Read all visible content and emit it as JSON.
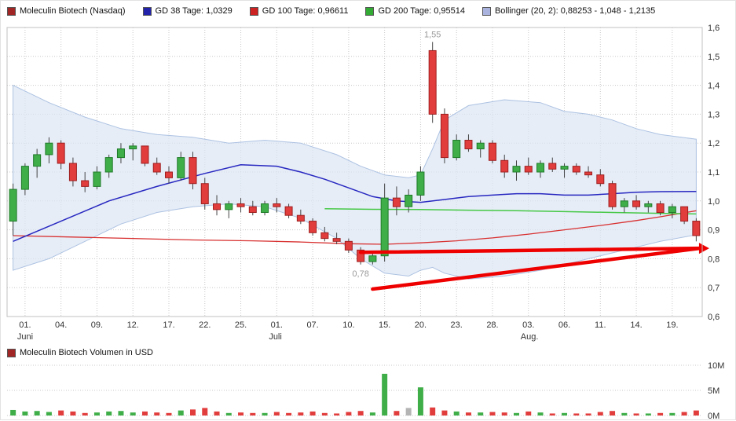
{
  "legend": {
    "items": [
      {
        "label": "Moleculin Biotech (Nasdaq)",
        "color": "#a02525"
      },
      {
        "label": "GD 38 Tage: 1,0329",
        "color": "#2222aa"
      },
      {
        "label": "GD 100 Tage: 0,96611",
        "color": "#cc2222"
      },
      {
        "label": "GD 200 Tage: 0,95514",
        "color": "#33aa33"
      },
      {
        "label": "Bollinger (20, 2): 0,88253 - 1,048 - 1,2135",
        "color": "#a9b3dd"
      }
    ]
  },
  "volume_section": {
    "legend_label": "Moleculin Biotech Volumen in USD",
    "legend_color": "#a02525",
    "y_ticks": [
      "10M",
      "5M",
      "0M"
    ]
  },
  "colors": {
    "up": "#3fae49",
    "up_border": "#1f7a28",
    "down": "#e23d3d",
    "down_border": "#9e1f1f",
    "wick": "#444444",
    "gd38": "#2828c0",
    "gd100": "#d83030",
    "gd200": "#46c846",
    "boll_fill": "#dce6f4",
    "boll_stroke": "#adc2e2",
    "trend": "#ee0000",
    "grid": "#c8c8c8",
    "axis_text": "#333333",
    "annotation": "#999999",
    "neutral_vol": "#b4b4b4",
    "plot_border": "#c0c0c0"
  },
  "chart_data": {
    "type": "candlestick",
    "title": "Moleculin Biotech (Nasdaq)",
    "currency_note": "prices in USD, German decimal format",
    "y_axis": {
      "min": 0.6,
      "max": 1.6,
      "tick_labels": [
        "1,6",
        "1,5",
        "1,4",
        "1,3",
        "1,2",
        "1,1",
        "1,0",
        "0,9",
        "0,8",
        "0,7",
        "0,6"
      ]
    },
    "x_ticks": [
      {
        "index": 1,
        "label": "01."
      },
      {
        "index": 4,
        "label": "04."
      },
      {
        "index": 7,
        "label": "09."
      },
      {
        "index": 10,
        "label": "12."
      },
      {
        "index": 13,
        "label": "17."
      },
      {
        "index": 16,
        "label": "22."
      },
      {
        "index": 19,
        "label": "25."
      },
      {
        "index": 22,
        "label": "01."
      },
      {
        "index": 25,
        "label": "07."
      },
      {
        "index": 28,
        "label": "10."
      },
      {
        "index": 31,
        "label": "15."
      },
      {
        "index": 34,
        "label": "20."
      },
      {
        "index": 37,
        "label": "23."
      },
      {
        "index": 40,
        "label": "28."
      },
      {
        "index": 43,
        "label": "03."
      },
      {
        "index": 46,
        "label": "06."
      },
      {
        "index": 49,
        "label": "11."
      },
      {
        "index": 52,
        "label": "14."
      },
      {
        "index": 55,
        "label": "19."
      }
    ],
    "month_labels": [
      {
        "index": 1,
        "label": "Juni"
      },
      {
        "index": 22,
        "label": "Juli"
      },
      {
        "index": 43,
        "label": "Aug."
      }
    ],
    "candles": [
      [
        0.93,
        1.06,
        0.88,
        1.04
      ],
      [
        1.04,
        1.13,
        1.02,
        1.12
      ],
      [
        1.12,
        1.18,
        1.08,
        1.16
      ],
      [
        1.16,
        1.22,
        1.13,
        1.2
      ],
      [
        1.2,
        1.21,
        1.11,
        1.13
      ],
      [
        1.13,
        1.15,
        1.05,
        1.07
      ],
      [
        1.07,
        1.1,
        1.03,
        1.05
      ],
      [
        1.05,
        1.12,
        1.04,
        1.1
      ],
      [
        1.1,
        1.16,
        1.08,
        1.15
      ],
      [
        1.15,
        1.2,
        1.13,
        1.18
      ],
      [
        1.18,
        1.2,
        1.14,
        1.19
      ],
      [
        1.19,
        1.19,
        1.12,
        1.13
      ],
      [
        1.13,
        1.15,
        1.09,
        1.1
      ],
      [
        1.1,
        1.12,
        1.06,
        1.08
      ],
      [
        1.08,
        1.17,
        1.07,
        1.15
      ],
      [
        1.15,
        1.17,
        1.04,
        1.06
      ],
      [
        1.06,
        1.08,
        0.97,
        0.99
      ],
      [
        0.99,
        1.02,
        0.95,
        0.97
      ],
      [
        0.97,
        1.0,
        0.94,
        0.99
      ],
      [
        0.99,
        1.01,
        0.96,
        0.98
      ],
      [
        0.98,
        1.0,
        0.95,
        0.96
      ],
      [
        0.96,
        1.0,
        0.95,
        0.99
      ],
      [
        0.99,
        1.01,
        0.96,
        0.98
      ],
      [
        0.98,
        0.99,
        0.94,
        0.95
      ],
      [
        0.95,
        0.97,
        0.92,
        0.93
      ],
      [
        0.93,
        0.94,
        0.88,
        0.89
      ],
      [
        0.89,
        0.91,
        0.86,
        0.87
      ],
      [
        0.87,
        0.89,
        0.85,
        0.86
      ],
      [
        0.86,
        0.87,
        0.82,
        0.83
      ],
      [
        0.83,
        0.84,
        0.78,
        0.79
      ],
      [
        0.79,
        0.82,
        0.78,
        0.81
      ],
      [
        0.81,
        1.06,
        0.79,
        1.01
      ],
      [
        1.01,
        1.05,
        0.95,
        0.98
      ],
      [
        0.98,
        1.04,
        0.96,
        1.02
      ],
      [
        1.02,
        1.12,
        1.0,
        1.1
      ],
      [
        1.52,
        1.55,
        1.27,
        1.3
      ],
      [
        1.3,
        1.32,
        1.13,
        1.15
      ],
      [
        1.15,
        1.23,
        1.14,
        1.21
      ],
      [
        1.21,
        1.23,
        1.17,
        1.18
      ],
      [
        1.18,
        1.21,
        1.15,
        1.2
      ],
      [
        1.2,
        1.21,
        1.13,
        1.14
      ],
      [
        1.14,
        1.16,
        1.08,
        1.1
      ],
      [
        1.1,
        1.14,
        1.07,
        1.12
      ],
      [
        1.12,
        1.15,
        1.09,
        1.1
      ],
      [
        1.1,
        1.14,
        1.08,
        1.13
      ],
      [
        1.13,
        1.15,
        1.1,
        1.11
      ],
      [
        1.11,
        1.13,
        1.08,
        1.12
      ],
      [
        1.12,
        1.13,
        1.09,
        1.1
      ],
      [
        1.1,
        1.12,
        1.08,
        1.09
      ],
      [
        1.09,
        1.11,
        1.05,
        1.06
      ],
      [
        1.06,
        1.07,
        0.97,
        0.98
      ],
      [
        0.98,
        1.01,
        0.96,
        1.0
      ],
      [
        1.0,
        1.02,
        0.97,
        0.98
      ],
      [
        0.98,
        1.0,
        0.96,
        0.99
      ],
      [
        0.99,
        1.0,
        0.95,
        0.96
      ],
      [
        0.96,
        0.99,
        0.94,
        0.98
      ],
      [
        0.98,
        0.98,
        0.92,
        0.93
      ],
      [
        0.93,
        0.94,
        0.86,
        0.88
      ]
    ],
    "gd38": [
      [
        0,
        0.86
      ],
      [
        4,
        0.93
      ],
      [
        8,
        1.0
      ],
      [
        12,
        1.05
      ],
      [
        16,
        1.095
      ],
      [
        19,
        1.125
      ],
      [
        22,
        1.12
      ],
      [
        24,
        1.1
      ],
      [
        26,
        1.075
      ],
      [
        28,
        1.045
      ],
      [
        30,
        1.015
      ],
      [
        32,
        1.0
      ],
      [
        34,
        0.995
      ],
      [
        36,
        1.005
      ],
      [
        38,
        1.015
      ],
      [
        40,
        1.02
      ],
      [
        42,
        1.025
      ],
      [
        44,
        1.025
      ],
      [
        46,
        1.02
      ],
      [
        48,
        1.02
      ],
      [
        50,
        1.025
      ],
      [
        52,
        1.03
      ],
      [
        54,
        1.032
      ],
      [
        57,
        1.033
      ]
    ],
    "gd100": [
      [
        0,
        0.88
      ],
      [
        5,
        0.875
      ],
      [
        10,
        0.87
      ],
      [
        15,
        0.865
      ],
      [
        20,
        0.862
      ],
      [
        24,
        0.858
      ],
      [
        28,
        0.852
      ],
      [
        31,
        0.85
      ],
      [
        34,
        0.855
      ],
      [
        37,
        0.862
      ],
      [
        40,
        0.872
      ],
      [
        43,
        0.885
      ],
      [
        46,
        0.9
      ],
      [
        49,
        0.915
      ],
      [
        52,
        0.932
      ],
      [
        54,
        0.945
      ],
      [
        57,
        0.966
      ]
    ],
    "gd200": [
      [
        26,
        0.973
      ],
      [
        30,
        0.971
      ],
      [
        34,
        0.97
      ],
      [
        38,
        0.968
      ],
      [
        42,
        0.966
      ],
      [
        46,
        0.963
      ],
      [
        50,
        0.96
      ],
      [
        54,
        0.957
      ],
      [
        57,
        0.955
      ]
    ],
    "bollinger": [
      [
        0,
        1.4,
        0.76
      ],
      [
        3,
        1.34,
        0.8
      ],
      [
        6,
        1.29,
        0.86
      ],
      [
        9,
        1.25,
        0.92
      ],
      [
        12,
        1.23,
        0.96
      ],
      [
        15,
        1.22,
        0.98
      ],
      [
        18,
        1.2,
        0.99
      ],
      [
        21,
        1.21,
        0.98
      ],
      [
        24,
        1.2,
        0.94
      ],
      [
        27,
        1.16,
        0.87
      ],
      [
        29,
        1.12,
        0.8
      ],
      [
        31,
        1.09,
        0.75
      ],
      [
        33,
        1.08,
        0.74
      ],
      [
        34,
        1.09,
        0.76
      ],
      [
        35,
        1.18,
        0.77
      ],
      [
        36,
        1.28,
        0.75
      ],
      [
        38,
        1.33,
        0.73
      ],
      [
        41,
        1.35,
        0.74
      ],
      [
        44,
        1.34,
        0.76
      ],
      [
        46,
        1.31,
        0.78
      ],
      [
        48,
        1.3,
        0.8
      ],
      [
        50,
        1.28,
        0.82
      ],
      [
        52,
        1.25,
        0.84
      ],
      [
        54,
        1.23,
        0.86
      ],
      [
        57,
        1.2135,
        0.88253
      ]
    ],
    "annotations": [
      {
        "index": 35,
        "price": 1.55,
        "label": "1,55",
        "pos": "above"
      },
      {
        "index": 29,
        "price": 0.78,
        "label": "0,78",
        "pos": "below"
      }
    ],
    "trend_lines": [
      {
        "from": [
          29,
          0.822
        ],
        "to": [
          57.3,
          0.836
        ],
        "arrow": true
      },
      {
        "from": [
          30,
          0.695
        ],
        "to": [
          57.3,
          0.836
        ],
        "arrow": false
      }
    ],
    "volume": {
      "unit": "M",
      "max": 10,
      "values": [
        [
          1.1,
          "g"
        ],
        [
          0.8,
          "g"
        ],
        [
          0.9,
          "g"
        ],
        [
          0.7,
          "g"
        ],
        [
          1.0,
          "r"
        ],
        [
          0.8,
          "r"
        ],
        [
          0.5,
          "r"
        ],
        [
          0.6,
          "g"
        ],
        [
          0.8,
          "g"
        ],
        [
          0.9,
          "g"
        ],
        [
          0.6,
          "g"
        ],
        [
          0.8,
          "r"
        ],
        [
          0.6,
          "r"
        ],
        [
          0.5,
          "r"
        ],
        [
          1.0,
          "g"
        ],
        [
          1.2,
          "r"
        ],
        [
          1.5,
          "r"
        ],
        [
          0.8,
          "r"
        ],
        [
          0.5,
          "g"
        ],
        [
          0.6,
          "r"
        ],
        [
          0.5,
          "r"
        ],
        [
          0.5,
          "g"
        ],
        [
          0.7,
          "r"
        ],
        [
          0.5,
          "r"
        ],
        [
          0.6,
          "r"
        ],
        [
          0.8,
          "r"
        ],
        [
          0.5,
          "r"
        ],
        [
          0.4,
          "r"
        ],
        [
          0.7,
          "r"
        ],
        [
          0.9,
          "r"
        ],
        [
          0.6,
          "g"
        ],
        [
          8.3,
          "g"
        ],
        [
          0.9,
          "r"
        ],
        [
          1.5,
          "n"
        ],
        [
          5.6,
          "g"
        ],
        [
          1.6,
          "r"
        ],
        [
          1.0,
          "r"
        ],
        [
          0.8,
          "g"
        ],
        [
          0.6,
          "r"
        ],
        [
          0.6,
          "g"
        ],
        [
          0.7,
          "r"
        ],
        [
          0.6,
          "r"
        ],
        [
          0.5,
          "g"
        ],
        [
          0.8,
          "r"
        ],
        [
          0.6,
          "g"
        ],
        [
          0.4,
          "r"
        ],
        [
          0.5,
          "g"
        ],
        [
          0.4,
          "r"
        ],
        [
          0.4,
          "r"
        ],
        [
          0.7,
          "r"
        ],
        [
          0.9,
          "r"
        ],
        [
          0.5,
          "g"
        ],
        [
          0.4,
          "r"
        ],
        [
          0.4,
          "g"
        ],
        [
          0.5,
          "r"
        ],
        [
          0.5,
          "g"
        ],
        [
          0.7,
          "r"
        ],
        [
          1.0,
          "r"
        ]
      ]
    }
  }
}
